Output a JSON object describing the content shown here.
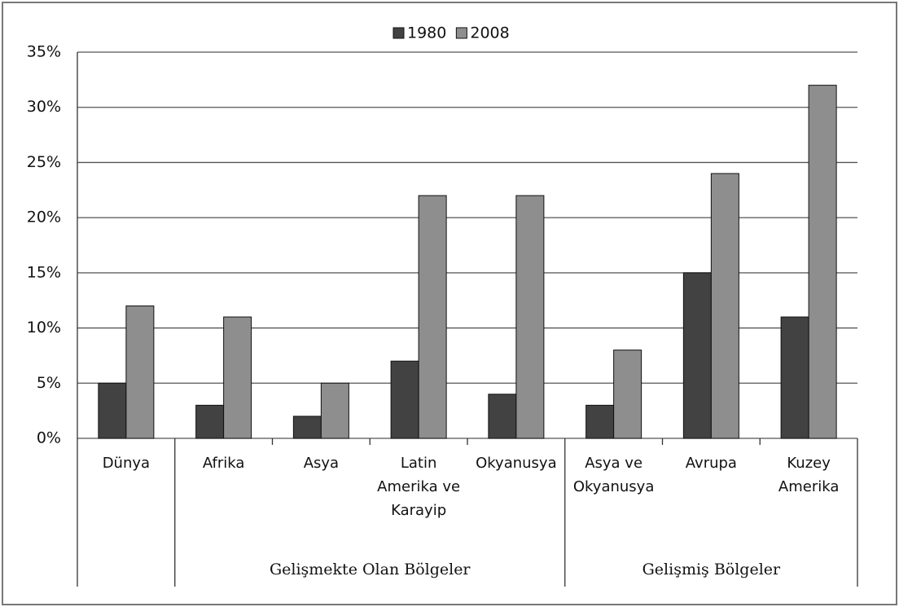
{
  "chart_data": {
    "type": "bar",
    "categories": [
      "Dünya",
      "Afrika",
      "Asya",
      "Latin Amerika ve Karayip",
      "Okyanusya",
      "Asya ve Okyanusya",
      "Avrupa",
      "Kuzey Amerika"
    ],
    "series": [
      {
        "name": "1980",
        "color": "#424242",
        "values": [
          5,
          3,
          2,
          7,
          4,
          3,
          15,
          11
        ]
      },
      {
        "name": "2008",
        "color": "#8e8e8e",
        "values": [
          12,
          11,
          5,
          22,
          22,
          8,
          24,
          32
        ]
      }
    ],
    "groups": [
      {
        "label": "Gelişmekte Olan Bölgeler",
        "start": 1,
        "end": 4
      },
      {
        "label": "Gelişmiş Bölgeler",
        "start": 5,
        "end": 7
      }
    ],
    "ylim": [
      0,
      35
    ],
    "yticks": [
      {
        "value": 0,
        "label": "0%"
      },
      {
        "value": 5,
        "label": "5%"
      },
      {
        "value": 10,
        "label": "10%"
      },
      {
        "value": 15,
        "label": "15%"
      },
      {
        "value": 20,
        "label": "20%"
      },
      {
        "value": 25,
        "label": "25%"
      },
      {
        "value": 30,
        "label": "30%"
      },
      {
        "value": 35,
        "label": "35%"
      }
    ],
    "grid": true,
    "legend": "top"
  }
}
